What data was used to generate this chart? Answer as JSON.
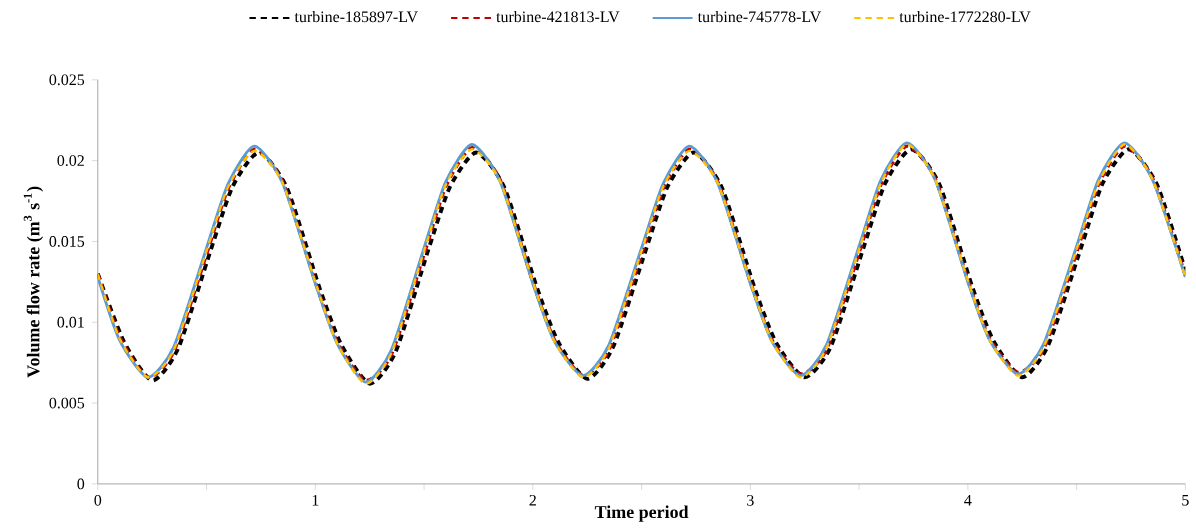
{
  "chart_data": {
    "type": "line",
    "xlabel": "Time period",
    "ylabel": "**Volume flow rate (m$^{3}$ s$^{-1}$)**",
    "x": [
      0,
      0.1,
      0.23,
      0.35,
      0.5,
      0.6,
      0.72,
      0.85,
      1,
      1.1,
      1.23,
      1.35,
      1.5,
      1.6,
      1.72,
      1.85,
      2,
      2.1,
      2.23,
      2.35,
      2.5,
      2.6,
      2.72,
      2.85,
      3,
      3.1,
      3.23,
      3.35,
      3.5,
      3.6,
      3.72,
      3.85,
      4,
      4.1,
      4.23,
      4.35,
      4.5,
      4.6,
      4.72,
      4.85,
      5
    ],
    "series": [
      {
        "name": "turbine-185897-LV",
        "color": "#000000",
        "line_style": "dashed",
        "x": [
          0,
          0.12,
          0.25,
          0.37,
          0.52,
          0.62,
          0.74,
          0.87,
          1.02,
          1.12,
          1.25,
          1.37,
          1.52,
          1.62,
          1.74,
          1.87,
          2.02,
          2.12,
          2.25,
          2.37,
          2.52,
          2.62,
          2.74,
          2.87,
          3.02,
          3.12,
          3.25,
          3.37,
          3.52,
          3.62,
          3.74,
          3.87,
          4.02,
          4.12,
          4.25,
          4.37,
          4.52,
          4.62,
          4.74,
          4.87,
          5
        ],
        "values": [
          0.013,
          0.0088,
          0.0064,
          0.0084,
          0.0145,
          0.0184,
          0.0205,
          0.0183,
          0.0121,
          0.0086,
          0.0062,
          0.0082,
          0.0145,
          0.0184,
          0.0205,
          0.0183,
          0.0121,
          0.0087,
          0.0065,
          0.0085,
          0.0145,
          0.0184,
          0.0205,
          0.0183,
          0.0121,
          0.0087,
          0.0066,
          0.0085,
          0.0146,
          0.0186,
          0.0207,
          0.0185,
          0.0122,
          0.0088,
          0.0066,
          0.0086,
          0.0146,
          0.0186,
          0.0207,
          0.0185,
          0.0132
        ]
      },
      {
        "name": "turbine-421813-LV",
        "color": "#c00000",
        "line_style": "dashed",
        "values": [
          0.013,
          0.0091,
          0.0066,
          0.0082,
          0.0142,
          0.0183,
          0.0207,
          0.0187,
          0.0125,
          0.0088,
          0.0064,
          0.008,
          0.0142,
          0.0184,
          0.0208,
          0.0188,
          0.0125,
          0.0089,
          0.0067,
          0.0083,
          0.0142,
          0.0183,
          0.0207,
          0.0187,
          0.0125,
          0.0089,
          0.0068,
          0.0083,
          0.0143,
          0.0185,
          0.0209,
          0.0189,
          0.0126,
          0.009,
          0.0069,
          0.0084,
          0.0143,
          0.0185,
          0.0209,
          0.0189,
          0.0129
        ]
      },
      {
        "name": "turbine-745778-LV",
        "color": "#5b9bd5",
        "line_style": "solid",
        "values": [
          0.0128,
          0.0089,
          0.0066,
          0.0085,
          0.0146,
          0.0186,
          0.0209,
          0.0186,
          0.0124,
          0.0087,
          0.0063,
          0.0083,
          0.0146,
          0.0187,
          0.021,
          0.0187,
          0.0124,
          0.0088,
          0.0067,
          0.0086,
          0.0146,
          0.0186,
          0.0209,
          0.0186,
          0.0124,
          0.0088,
          0.0067,
          0.0086,
          0.0147,
          0.0188,
          0.0211,
          0.0188,
          0.0125,
          0.0089,
          0.0068,
          0.0087,
          0.0147,
          0.0188,
          0.0211,
          0.0188,
          0.0128
        ]
      },
      {
        "name": "turbine-1772280-LV",
        "color": "#ffc000",
        "line_style": "dashed",
        "values": [
          0.013,
          0.009,
          0.0066,
          0.0083,
          0.0144,
          0.0184,
          0.0206,
          0.0186,
          0.0125,
          0.0087,
          0.0062,
          0.0081,
          0.0144,
          0.0185,
          0.0207,
          0.0187,
          0.0125,
          0.0088,
          0.0066,
          0.0084,
          0.0144,
          0.0184,
          0.0206,
          0.0186,
          0.0125,
          0.0088,
          0.0066,
          0.0084,
          0.0145,
          0.0186,
          0.021,
          0.0188,
          0.0126,
          0.0089,
          0.0067,
          0.0085,
          0.0145,
          0.0186,
          0.021,
          0.0188,
          0.0128
        ]
      }
    ],
    "xlim": [
      0,
      5
    ],
    "ylim": [
      0,
      0.025
    ],
    "xticks": [
      0,
      {
        "value": 0.5,
        "label": null
      },
      1,
      {
        "value": 1.5,
        "label": null
      },
      2,
      {
        "value": 2.5,
        "label": null
      },
      3,
      {
        "value": 3.5,
        "label": null
      },
      4,
      {
        "value": 4.5,
        "label": null
      },
      5
    ],
    "yticks": [
      0,
      0.005,
      0.01,
      0.015,
      0.02,
      0.025
    ],
    "legend": "top",
    "grid": false,
    "marker": "none"
  }
}
